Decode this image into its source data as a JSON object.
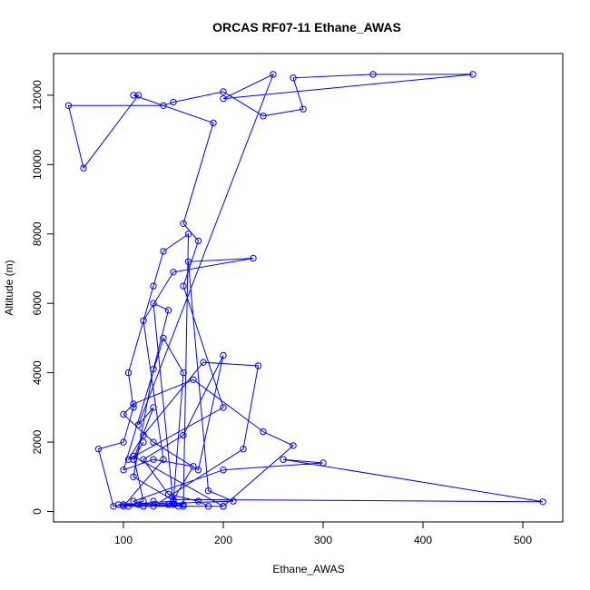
{
  "chart_data": {
    "type": "line",
    "title": "ORCAS RF07-11 Ethane_AWAS",
    "xlabel": "Ethane_AWAS",
    "ylabel": "Altitude (m)",
    "xlim": [
      30,
      540
    ],
    "ylim": [
      -300,
      13200
    ],
    "x_ticks": [
      100,
      200,
      300,
      400,
      500
    ],
    "x_tick_labels": [
      "100",
      "200",
      "300",
      "400",
      "500"
    ],
    "y_ticks": [
      0,
      2000,
      4000,
      6000,
      8000,
      10000,
      12000
    ],
    "y_tick_labels": [
      "0",
      "2000",
      "4000",
      "6000",
      "8000",
      "10000",
      "12000"
    ],
    "grid": false,
    "series": [
      {
        "color": "#0000ff",
        "marker": "open-circle",
        "line": true,
        "x": [
          120,
          110,
          130,
          115,
          250,
          200,
          450,
          350,
          270,
          280,
          240,
          200,
          150,
          140,
          45,
          60,
          115,
          110,
          190,
          160,
          175,
          160,
          200,
          105,
          120,
          180,
          235,
          220,
          130,
          100,
          95,
          120,
          160,
          165,
          140,
          130,
          105,
          110,
          100,
          75,
          90,
          100,
          150,
          160,
          140,
          100,
          130,
          170,
          150,
          520,
          260,
          300,
          200,
          110,
          115,
          210,
          185,
          165,
          230,
          150,
          120,
          140,
          100,
          150,
          130,
          145,
          130,
          110,
          160,
          200,
          105,
          120,
          110,
          200,
          270,
          240,
          170,
          110,
          100,
          130,
          175,
          200,
          160,
          120,
          145,
          175,
          185,
          155,
          145,
          130,
          120
        ],
        "y": [
          2000,
          1500,
          3000,
          2500,
          12600,
          11900,
          12600,
          12600,
          12500,
          11600,
          11400,
          12100,
          11800,
          11700,
          11700,
          9900,
          12000,
          12000,
          11200,
          8300,
          7800,
          6500,
          3000,
          1500,
          2200,
          4300,
          4200,
          1800,
          150,
          200,
          200,
          150,
          200,
          8000,
          7500,
          6500,
          4000,
          3000,
          2000,
          1800,
          150,
          200,
          300,
          4000,
          5000,
          1200,
          1500,
          1300,
          350,
          280,
          1500,
          1400,
          1200,
          300,
          200,
          300,
          600,
          7200,
          7300,
          6900,
          5500,
          1500,
          150,
          200,
          6000,
          5800,
          4100,
          1000,
          150,
          150,
          150,
          300,
          1600,
          150,
          1900,
          2300,
          3800,
          3100,
          2800,
          2000,
          1200,
          4500,
          2200,
          1500,
          500,
          300,
          150,
          150,
          200,
          300,
          150
        ]
      }
    ]
  }
}
